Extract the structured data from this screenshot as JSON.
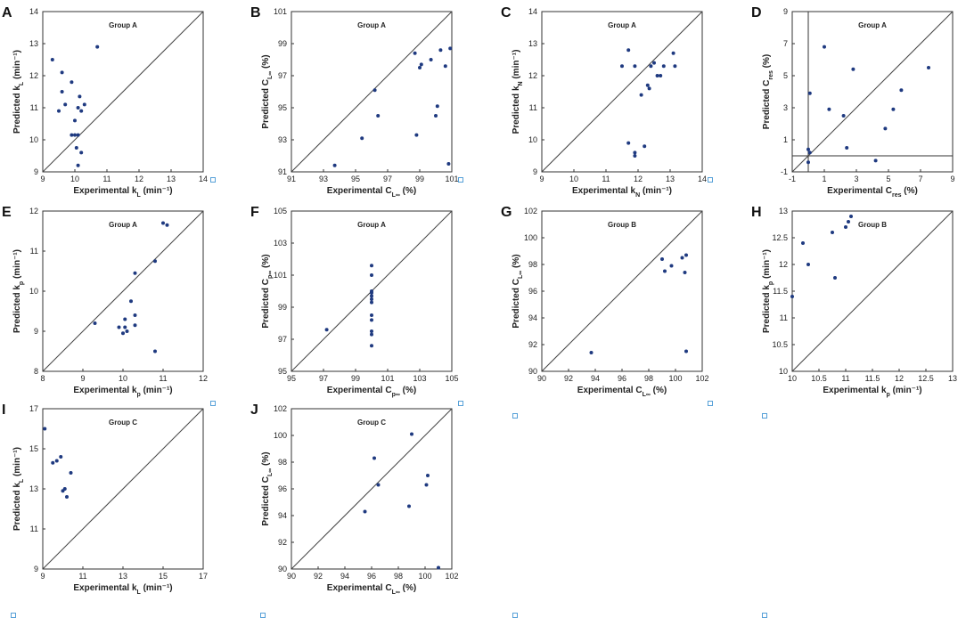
{
  "figure": {
    "marker_color": "#1f3a80",
    "line_color": "#444444"
  },
  "chart_data": [
    {
      "label": "A",
      "type": "scatter",
      "title": "Group A",
      "xlabel": "Experimental k",
      "xsub": "L",
      "xunit": " (min⁻¹)",
      "ylabel": "Predicted k",
      "ysub": "L",
      "yunit": " (min⁻¹)",
      "xlim": [
        9,
        14
      ],
      "ylim": [
        9,
        14
      ],
      "xticks": [
        9,
        10,
        11,
        12,
        13,
        14
      ],
      "yticks": [
        9,
        10,
        11,
        12,
        13,
        14
      ],
      "identity_line": true,
      "x": [
        9.3,
        9.5,
        9.6,
        9.6,
        9.7,
        9.9,
        10.0,
        10.0,
        10.05,
        10.1,
        10.1,
        10.15,
        10.2,
        10.2,
        10.3,
        10.7,
        9.9,
        10.1
      ],
      "y": [
        12.5,
        10.9,
        12.1,
        11.5,
        11.1,
        11.8,
        10.6,
        10.15,
        9.75,
        9.2,
        10.15,
        11.35,
        10.9,
        9.6,
        11.1,
        12.9,
        10.15,
        11.0
      ]
    },
    {
      "label": "B",
      "type": "scatter",
      "title": "Group A",
      "xlabel": "Experimental C",
      "xsub": "L∞",
      "xunit": " (%)",
      "ylabel": "Predicted C",
      "ysub": "L∞",
      "yunit": " (%)",
      "xlim": [
        91,
        101
      ],
      "ylim": [
        91,
        101
      ],
      "xticks": [
        91,
        93,
        95,
        97,
        99,
        101
      ],
      "yticks": [
        91,
        93,
        95,
        97,
        99,
        101
      ],
      "identity_line": true,
      "x": [
        93.7,
        95.4,
        96.2,
        96.4,
        98.7,
        98.8,
        99.0,
        99.1,
        99.7,
        100.0,
        100.1,
        100.3,
        100.6,
        100.8,
        100.9
      ],
      "y": [
        91.4,
        93.1,
        96.1,
        94.5,
        98.4,
        93.3,
        97.5,
        97.7,
        98.0,
        94.5,
        95.1,
        98.6,
        97.6,
        91.5,
        98.7
      ]
    },
    {
      "label": "C",
      "type": "scatter",
      "title": "Group A",
      "xlabel": "Experimental k",
      "xsub": "N",
      "xunit": " (min⁻¹)",
      "ylabel": "Predicted k",
      "ysub": "N",
      "yunit": " (min⁻¹)",
      "xlim": [
        9,
        14
      ],
      "ylim": [
        9,
        14
      ],
      "xticks": [
        9,
        10,
        11,
        12,
        13,
        14
      ],
      "yticks": [
        9,
        10,
        11,
        12,
        13,
        14
      ],
      "identity_line": true,
      "x": [
        11.5,
        11.7,
        11.7,
        11.9,
        11.9,
        11.9,
        12.1,
        12.2,
        12.3,
        12.35,
        12.4,
        12.5,
        12.6,
        12.7,
        12.8,
        13.1,
        13.15
      ],
      "y": [
        12.3,
        12.8,
        9.9,
        12.3,
        9.5,
        9.6,
        11.4,
        9.8,
        11.7,
        11.6,
        12.3,
        12.4,
        12.0,
        12.0,
        12.3,
        12.7,
        12.3
      ]
    },
    {
      "label": "D",
      "type": "scatter",
      "title": "Group A",
      "xlabel": "Experimental C",
      "xsub": "res",
      "xunit": " (%)",
      "ylabel": "Predicted C",
      "ysub": "res",
      "yunit": " (%)",
      "xlim": [
        -1,
        9
      ],
      "ylim": [
        -1,
        9
      ],
      "xticks": [
        -1,
        1,
        3,
        5,
        7,
        9
      ],
      "yticks": [
        -1,
        1,
        3,
        5,
        7,
        9
      ],
      "identity_line": true,
      "x": [
        0.0,
        0.0,
        0.1,
        0.1,
        1.0,
        1.3,
        2.2,
        2.4,
        2.8,
        4.2,
        4.8,
        5.3,
        5.8,
        7.5
      ],
      "y": [
        0.4,
        -0.4,
        0.2,
        3.9,
        6.8,
        2.9,
        2.5,
        0.5,
        5.4,
        -0.3,
        1.7,
        2.9,
        4.1,
        5.5
      ]
    },
    {
      "label": "E",
      "type": "scatter",
      "title": "Group A",
      "xlabel": "Experimental k",
      "xsub": "p",
      "xunit": " (min⁻¹)",
      "ylabel": "Predicted k",
      "ysub": "p",
      "yunit": " (min⁻¹)",
      "xlim": [
        8,
        12
      ],
      "ylim": [
        8,
        12
      ],
      "xticks": [
        8,
        9,
        10,
        11,
        12
      ],
      "yticks": [
        8,
        9,
        10,
        11,
        12
      ],
      "identity_line": true,
      "x": [
        9.3,
        9.9,
        10.0,
        10.05,
        10.05,
        10.1,
        10.2,
        10.3,
        10.3,
        10.3,
        10.8,
        10.8,
        11.0,
        11.1
      ],
      "y": [
        9.2,
        9.1,
        8.95,
        9.1,
        9.3,
        9.0,
        9.75,
        9.15,
        9.4,
        10.45,
        10.75,
        8.5,
        11.7,
        11.65
      ]
    },
    {
      "label": "F",
      "type": "scatter",
      "title": "Group A",
      "xlabel": "Experimental C",
      "xsub": "p∞",
      "xunit": " (%)",
      "ylabel": "Predicted C",
      "ysub": "p∞",
      "yunit": " (%)",
      "xlim": [
        95,
        105
      ],
      "ylim": [
        95,
        105
      ],
      "xticks": [
        95,
        97,
        99,
        101,
        103,
        105
      ],
      "yticks": [
        95,
        97,
        99,
        101,
        103,
        105
      ],
      "identity_line": true,
      "x": [
        97.2,
        100,
        100,
        100,
        100,
        100,
        100,
        100,
        100,
        100,
        100,
        100,
        100
      ],
      "y": [
        97.6,
        101.6,
        101.0,
        100.0,
        99.7,
        99.5,
        99.3,
        98.5,
        98.2,
        97.5,
        97.3,
        96.6,
        99.9
      ]
    },
    {
      "label": "G",
      "type": "scatter",
      "title": "Group B",
      "xlabel": "Experimental C",
      "xsub": "L∞",
      "xunit": " (%)",
      "ylabel": "Predicted C",
      "ysub": "L∞",
      "yunit": " (%)",
      "xlim": [
        90,
        102
      ],
      "ylim": [
        90,
        102
      ],
      "xticks": [
        90,
        92,
        94,
        96,
        98,
        100,
        102
      ],
      "yticks": [
        90,
        92,
        94,
        96,
        98,
        100,
        102
      ],
      "identity_line": true,
      "x": [
        93.7,
        99.0,
        99.2,
        99.7,
        100.5,
        100.7,
        100.8,
        100.8
      ],
      "y": [
        91.4,
        98.4,
        97.5,
        97.9,
        98.5,
        97.4,
        91.5,
        98.7
      ]
    },
    {
      "label": "H",
      "type": "scatter",
      "title": "Group B",
      "xlabel": "Experimental k",
      "xsub": "p",
      "xunit": " (min⁻¹)",
      "ylabel": "Predicted k",
      "ysub": "p",
      "yunit": " (min⁻¹)",
      "xlim": [
        10,
        13
      ],
      "ylim": [
        10,
        13
      ],
      "xticks": [
        10,
        10.5,
        11,
        11.5,
        12,
        12.5,
        13
      ],
      "yticks": [
        10,
        10.5,
        11,
        11.5,
        12,
        12.5,
        13
      ],
      "identity_line": true,
      "x": [
        10.0,
        10.2,
        10.3,
        10.75,
        10.8,
        11.0,
        11.05,
        11.1
      ],
      "y": [
        11.4,
        12.4,
        12.0,
        12.6,
        11.75,
        12.7,
        12.8,
        12.9
      ]
    },
    {
      "label": "I",
      "type": "scatter",
      "title": "Group C",
      "xlabel": "Experimental k",
      "xsub": "L",
      "xunit": " (min⁻¹)",
      "ylabel": "Predicted k",
      "ysub": "L",
      "yunit": " (min⁻¹)",
      "xlim": [
        9,
        17
      ],
      "ylim": [
        9,
        17
      ],
      "xticks": [
        9,
        11,
        13,
        15,
        17
      ],
      "yticks": [
        9,
        11,
        13,
        15,
        17
      ],
      "identity_line": true,
      "x": [
        9.1,
        9.5,
        9.7,
        9.9,
        10.0,
        10.1,
        10.2,
        10.4
      ],
      "y": [
        16.0,
        14.3,
        14.4,
        14.6,
        12.9,
        13.0,
        12.6,
        13.8
      ]
    },
    {
      "label": "J",
      "type": "scatter",
      "title": "Group C",
      "xlabel": "Experimental C",
      "xsub": "L∞",
      "xunit": " (%)",
      "ylabel": "Predicted C",
      "ysub": "L∞",
      "yunit": " (%)",
      "xlim": [
        90,
        102
      ],
      "ylim": [
        90,
        102
      ],
      "xticks": [
        90,
        92,
        94,
        96,
        98,
        100,
        102
      ],
      "yticks": [
        90,
        92,
        94,
        96,
        98,
        100,
        102
      ],
      "identity_line": true,
      "x": [
        95.5,
        96.2,
        96.5,
        98.8,
        99.0,
        100.1,
        100.2,
        101.0
      ],
      "y": [
        94.3,
        98.3,
        96.3,
        94.7,
        100.1,
        96.3,
        97.0,
        90.1
      ]
    }
  ]
}
